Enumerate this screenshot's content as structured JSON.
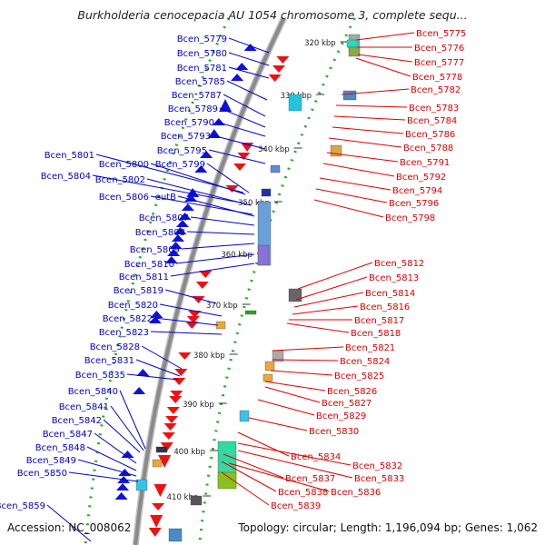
{
  "title": "Burkholderia cenocepacia AU 1054 chromosome 3, complete sequ...",
  "footer": {
    "accession": "Accession: NC_008062",
    "topology": "Topology: circular; Length: 1,196,094 bp; Genes: 1,062"
  },
  "colors": {
    "forward_gene": "#1010dd",
    "reverse_gene": "#ee1111",
    "left_label": "#0000cc",
    "right_label": "#dd0000",
    "backbone": "#8a8a8a",
    "tick": "#22aa22"
  },
  "kbp_ticks": [
    "320 kbp",
    "330 kbp",
    "340 kbp",
    "350 kbp",
    "360 kbp",
    "370 kbp",
    "380 kbp",
    "390 kbp",
    "400 kbp",
    "410 kbp"
  ],
  "left_labels": [
    "Bcen_5779",
    "Bcen_5780",
    "Bcen_5781",
    "Bcen_5785",
    "Bcen_5787",
    "Bcen_5789",
    "Bcen_5790",
    "Bcen_5793",
    "Bcen_5795",
    "Bcen_5801",
    "Bcen_5800",
    "Bcen_5799",
    "Bcen_5804",
    "Bcen_5802",
    "Bcen_5806",
    "eutB",
    "Bcen_5807",
    "Bcen_5808",
    "Bcen_5809",
    "Bcen_5810",
    "Bcen_5811",
    "Bcen_5819",
    "Bcen_5820",
    "Bcen_5822",
    "Bcen_5823",
    "Bcen_5828",
    "Bcen_5831",
    "Bcen_5835",
    "Bcen_5840",
    "Bcen_5841",
    "Bcen_5842",
    "Bcen_5847",
    "Bcen_5848",
    "Bcen_5849",
    "Bcen_5850",
    "Bcen_5859"
  ],
  "right_labels": [
    "Bcen_5775",
    "Bcen_5776",
    "Bcen_5777",
    "Bcen_5778",
    "Bcen_5782",
    "Bcen_5783",
    "Bcen_5784",
    "Bcen_5786",
    "Bcen_5788",
    "Bcen_5791",
    "Bcen_5792",
    "Bcen_5794",
    "Bcen_5796",
    "Bcen_5798",
    "Bcen_5812",
    "Bcen_5813",
    "Bcen_5814",
    "Bcen_5816",
    "Bcen_5817",
    "Bcen_5818",
    "Bcen_5821",
    "Bcen_5824",
    "Bcen_5825",
    "Bcen_5826",
    "Bcen_5827",
    "Bcen_5829",
    "Bcen_5830",
    "Bcen_5834",
    "Bcen_5832",
    "Bcen_5833",
    "Bcen_5837",
    "Bcen_5838",
    "Bcen_5836",
    "Bcen_5839"
  ]
}
